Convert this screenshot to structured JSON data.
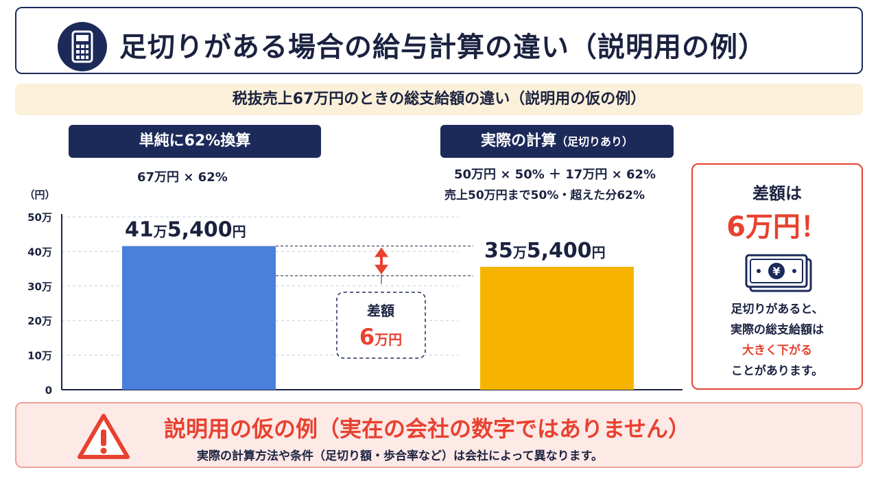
{
  "title": "足切りがある場合の給与計算の違い（説明用の例）",
  "subtitle": "税抜売上67万円のときの総支給額の違い（説明用の仮の例）",
  "left_panel": {
    "label": "単純に62%換算",
    "formula": "67万円 × 62%"
  },
  "right_panel": {
    "label_main": "実際の計算",
    "label_sub": "（足切りあり）",
    "formula_line1": "50万円 × 50% ＋ 17万円 × 62%",
    "formula_line2": "売上50万円まで50%・超えた分62%"
  },
  "chart_data": {
    "type": "bar",
    "ylabel": "（円）",
    "ylim": [
      0,
      500000
    ],
    "yticks": [
      0,
      100000,
      200000,
      300000,
      400000,
      500000
    ],
    "ytick_labels": [
      "0",
      "10万",
      "20万",
      "30万",
      "40万",
      "50万"
    ],
    "categories": [
      "単純に62%換算",
      "実際の計算（足切りあり）"
    ],
    "values": [
      415400,
      355400
    ],
    "bar_colors": [
      "#4a7fdb",
      "#f6b400"
    ],
    "bar_labels": [
      {
        "num1": "41",
        "unit1": "万",
        "num2": "5,400",
        "unit2": "円"
      },
      {
        "num1": "35",
        "unit1": "万",
        "num2": "5,400",
        "unit2": "円"
      }
    ],
    "difference": {
      "label": "差額",
      "num": "6",
      "unit": "万円",
      "value": 60000
    },
    "grid": true
  },
  "side_card": {
    "heading": "差額は",
    "amount": "6万円！",
    "icon": "money-bill-yen-icon",
    "line1": "足切りがあると、",
    "line2": "実際の総支給額は",
    "line3": "大きく下がる",
    "line4": "ことがあります。"
  },
  "warning": {
    "icon": "warning-triangle-icon",
    "title": "説明用の仮の例（実在の会社の数字ではありません）",
    "subtitle": "実際の計算方法や条件（足切り額・歩合率など）は会社によって異なります。"
  },
  "colors": {
    "navy": "#1c2a5a",
    "accent_red": "#e8412f",
    "blue_bar": "#4a7fdb",
    "yellow_bar": "#f6b400"
  }
}
